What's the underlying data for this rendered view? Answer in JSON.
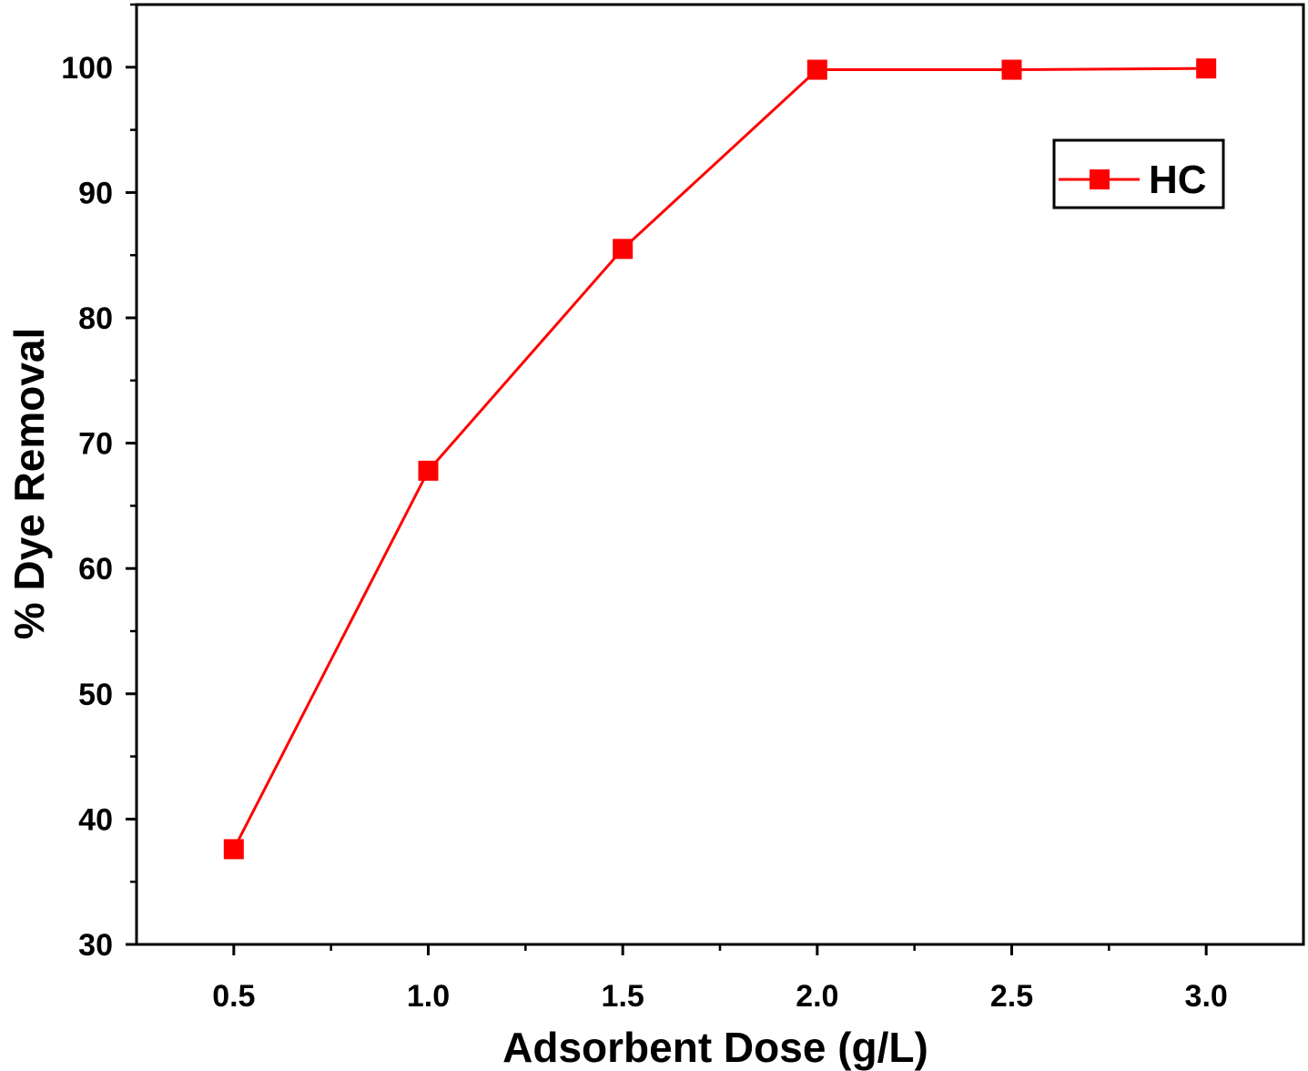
{
  "chart_data": {
    "type": "line",
    "title": "",
    "xlabel": "Adsorbent Dose (g/L)",
    "ylabel": "% Dye Removal",
    "xlim": [
      0.25,
      3.25
    ],
    "ylim": [
      30,
      105
    ],
    "xticks": [
      "0.5",
      "1.0",
      "1.5",
      "2.0",
      "2.5",
      "3.0"
    ],
    "yticks": [
      "30",
      "40",
      "50",
      "60",
      "70",
      "80",
      "90",
      "100"
    ],
    "grid": false,
    "legend_position": "top-right",
    "series": [
      {
        "name": "HC",
        "color": "#ff0000",
        "marker": "square",
        "x": [
          0.5,
          1.0,
          1.5,
          2.0,
          2.5,
          3.0
        ],
        "y": [
          37.6,
          67.8,
          85.5,
          99.8,
          99.8,
          99.9
        ]
      }
    ]
  }
}
